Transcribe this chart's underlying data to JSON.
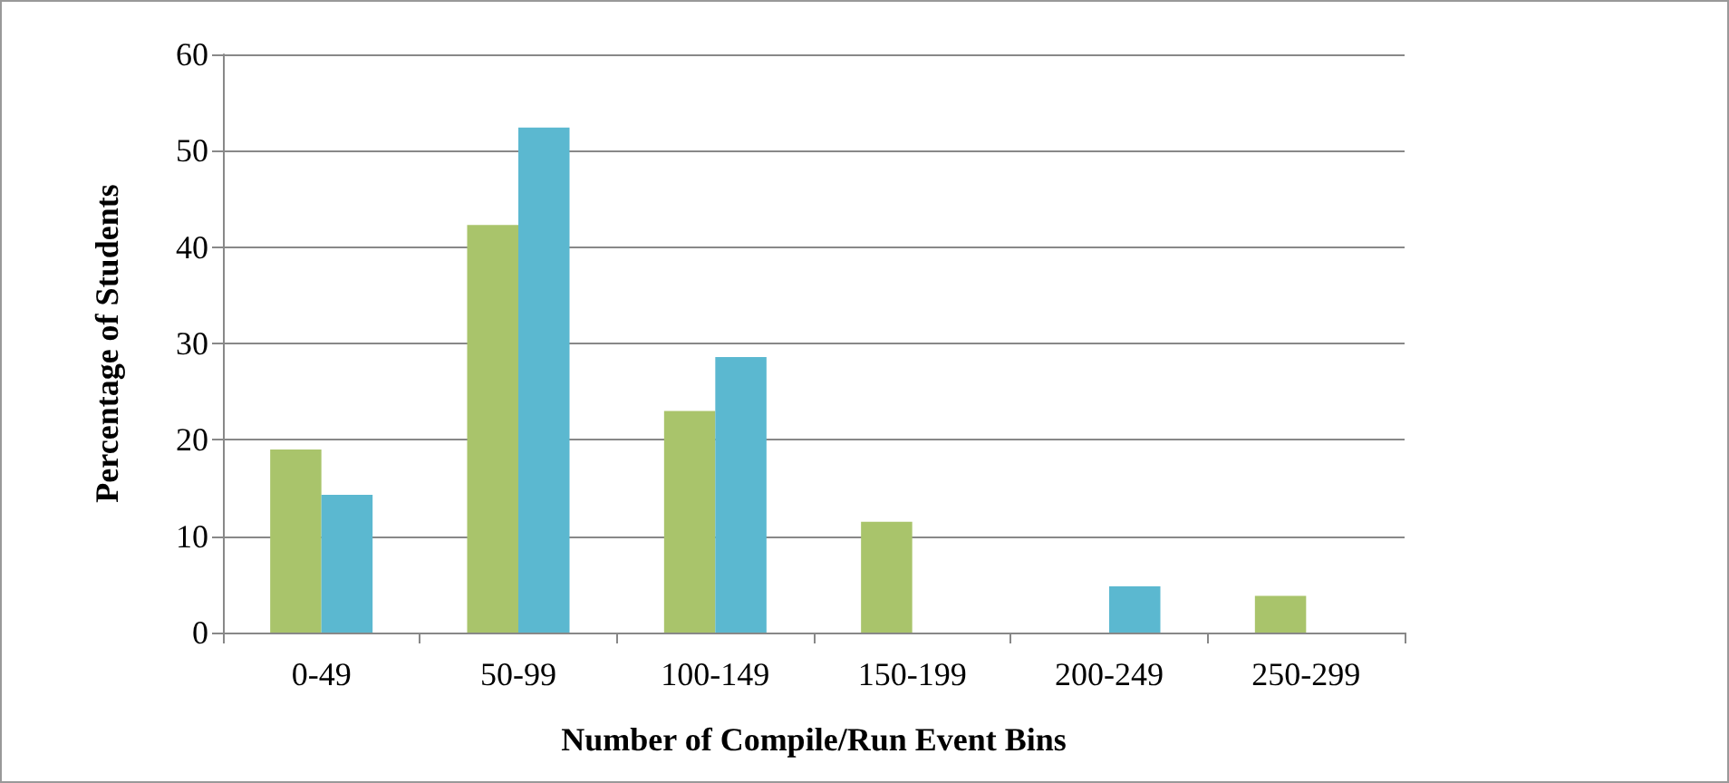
{
  "chart_data": {
    "type": "bar",
    "xlabel": "Number of Compile/Run Event Bins",
    "ylabel": "Percentage of Students",
    "categories": [
      "0-49",
      "50-99",
      "100-149",
      "150-199",
      "200-249",
      "250-299"
    ],
    "series": [
      {
        "color": "#a9c46b",
        "values": [
          19,
          42.3,
          23,
          11.5,
          0,
          3.8
        ]
      },
      {
        "color": "#5bb8d0",
        "values": [
          14.3,
          52.4,
          28.6,
          0,
          4.8,
          0
        ]
      }
    ],
    "ylim": [
      0,
      60
    ],
    "yticks": [
      0,
      10,
      20,
      30,
      40,
      50,
      60
    ],
    "grid": "y"
  }
}
